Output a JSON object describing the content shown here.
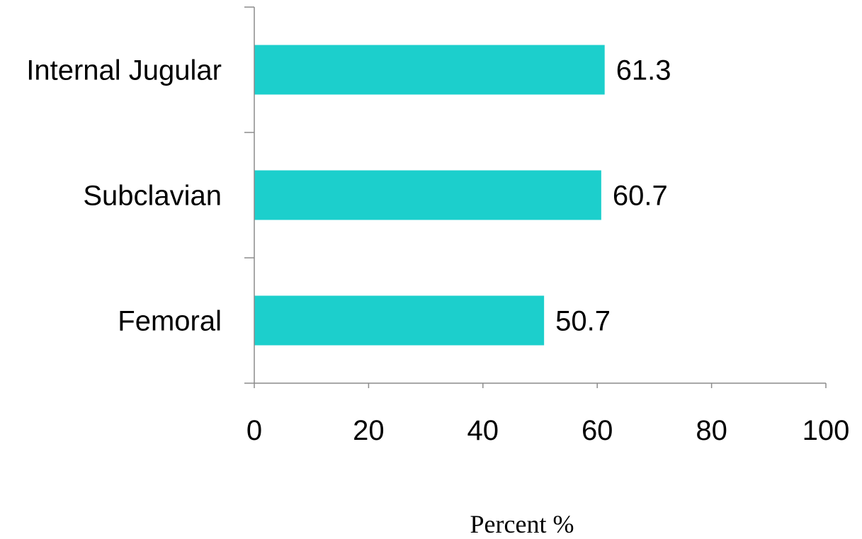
{
  "chart_data": {
    "type": "bar",
    "orientation": "horizontal",
    "categories": [
      "Internal Jugular",
      "Subclavian",
      "Femoral"
    ],
    "values": [
      61.3,
      60.7,
      50.7
    ],
    "data_labels": [
      "61.3",
      "60.7",
      "50.7"
    ],
    "xlabel": "Percent %",
    "ylabel": "",
    "xlim": [
      0,
      100
    ],
    "x_ticks": [
      0,
      20,
      40,
      60,
      80,
      100
    ],
    "x_tick_labels": [
      "0",
      "20",
      "40",
      "60",
      "80",
      "100"
    ],
    "grid": false,
    "legend": "none",
    "bar_color": "#1ccfcc"
  }
}
